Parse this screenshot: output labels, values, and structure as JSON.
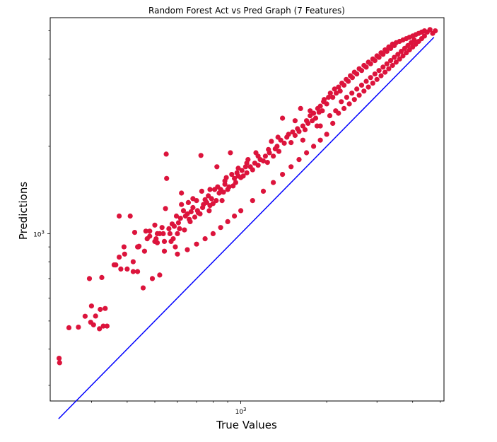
{
  "chart_data": {
    "type": "scatter",
    "title": "Random Forest Act vs Pred Graph (7 Features)",
    "xlabel": "True Values",
    "ylabel": "Predictions",
    "xscale": "log",
    "yscale": "log",
    "xlim": [
      215,
      5150
    ],
    "ylim": [
      265,
      5550
    ],
    "x_tick_labels": [
      {
        "value": 1000,
        "base": "10",
        "exp": "3"
      }
    ],
    "y_tick_labels": [
      {
        "value": 1000,
        "base": "10",
        "exp": "3"
      }
    ],
    "grid": false,
    "legend": "none",
    "point_color": "#dc143c",
    "line_color": "#0000ff",
    "identity_line": {
      "x": [
        230,
        4750
      ],
      "y": [
        230,
        4750
      ]
    },
    "points": [
      [
        231,
        372
      ],
      [
        232,
        359
      ],
      [
        250,
        474
      ],
      [
        270,
        476
      ],
      [
        285,
        519
      ],
      [
        295,
        700
      ],
      [
        298,
        495
      ],
      [
        300,
        563
      ],
      [
        305,
        485
      ],
      [
        310,
        520
      ],
      [
        320,
        470
      ],
      [
        322,
        548
      ],
      [
        326,
        706
      ],
      [
        330,
        480
      ],
      [
        335,
        552
      ],
      [
        340,
        480
      ],
      [
        360,
        780
      ],
      [
        365,
        780
      ],
      [
        375,
        830
      ],
      [
        375,
        1150
      ],
      [
        380,
        755
      ],
      [
        390,
        900
      ],
      [
        392,
        850
      ],
      [
        400,
        755
      ],
      [
        410,
        1150
      ],
      [
        420,
        740
      ],
      [
        420,
        800
      ],
      [
        425,
        1010
      ],
      [
        435,
        740
      ],
      [
        435,
        900
      ],
      [
        438,
        900
      ],
      [
        440,
        905
      ],
      [
        455,
        650
      ],
      [
        460,
        870
      ],
      [
        465,
        1020
      ],
      [
        470,
        960
      ],
      [
        480,
        1020
      ],
      [
        480,
        980
      ],
      [
        490,
        700
      ],
      [
        500,
        1070
      ],
      [
        500,
        940
      ],
      [
        505,
        960
      ],
      [
        510,
        1000
      ],
      [
        510,
        930
      ],
      [
        520,
        1000
      ],
      [
        520,
        720
      ],
      [
        530,
        1050
      ],
      [
        535,
        1000
      ],
      [
        540,
        940
      ],
      [
        540,
        870
      ],
      [
        545,
        1220
      ],
      [
        548,
        1880
      ],
      [
        550,
        1550
      ],
      [
        560,
        1040
      ],
      [
        565,
        1000
      ],
      [
        570,
        940
      ],
      [
        575,
        1080
      ],
      [
        580,
        960
      ],
      [
        585,
        1060
      ],
      [
        590,
        900
      ],
      [
        595,
        1150
      ],
      [
        600,
        1000
      ],
      [
        605,
        1090
      ],
      [
        610,
        1040
      ],
      [
        615,
        1130
      ],
      [
        620,
        1380
      ],
      [
        630,
        1200
      ],
      [
        635,
        1030
      ],
      [
        640,
        1150
      ],
      [
        650,
        1170
      ],
      [
        655,
        1280
      ],
      [
        660,
        1120
      ],
      [
        665,
        1100
      ],
      [
        670,
        1190
      ],
      [
        680,
        1230
      ],
      [
        690,
        1140
      ],
      [
        700,
        1300
      ],
      [
        705,
        1200
      ],
      [
        710,
        1180
      ],
      [
        720,
        1170
      ],
      [
        725,
        1860
      ],
      [
        730,
        1400
      ],
      [
        735,
        1230
      ],
      [
        740,
        1260
      ],
      [
        750,
        1310
      ],
      [
        760,
        1280
      ],
      [
        770,
        1350
      ],
      [
        775,
        1200
      ],
      [
        780,
        1250
      ],
      [
        790,
        1320
      ],
      [
        800,
        1270
      ],
      [
        810,
        1420
      ],
      [
        820,
        1300
      ],
      [
        825,
        1700
      ],
      [
        830,
        1450
      ],
      [
        840,
        1380
      ],
      [
        850,
        1420
      ],
      [
        860,
        1300
      ],
      [
        870,
        1390
      ],
      [
        880,
        1480
      ],
      [
        890,
        1560
      ],
      [
        900,
        1420
      ],
      [
        910,
        1450
      ],
      [
        920,
        1900
      ],
      [
        930,
        1600
      ],
      [
        940,
        1460
      ],
      [
        950,
        1550
      ],
      [
        960,
        1500
      ],
      [
        970,
        1620
      ],
      [
        980,
        1580
      ],
      [
        1000,
        1560
      ],
      [
        1010,
        1650
      ],
      [
        1020,
        1580
      ],
      [
        1040,
        1700
      ],
      [
        1050,
        1620
      ],
      [
        1060,
        1800
      ],
      [
        1080,
        1700
      ],
      [
        1100,
        1660
      ],
      [
        1120,
        1750
      ],
      [
        1130,
        1900
      ],
      [
        1150,
        1720
      ],
      [
        1170,
        1800
      ],
      [
        1200,
        1780
      ],
      [
        1220,
        1850
      ],
      [
        1240,
        1760
      ],
      [
        1260,
        1900
      ],
      [
        1280,
        2080
      ],
      [
        1300,
        1850
      ],
      [
        1320,
        1960
      ],
      [
        1340,
        2000
      ],
      [
        1360,
        1920
      ],
      [
        1380,
        2100
      ],
      [
        1400,
        2500
      ],
      [
        1420,
        2050
      ],
      [
        1450,
        2150
      ],
      [
        1470,
        2200
      ],
      [
        1500,
        2060
      ],
      [
        1520,
        2240
      ],
      [
        1550,
        2180
      ],
      [
        1580,
        2300
      ],
      [
        1600,
        2250
      ],
      [
        1620,
        2700
      ],
      [
        1650,
        2350
      ],
      [
        1680,
        2280
      ],
      [
        1700,
        2450
      ],
      [
        1720,
        2400
      ],
      [
        1750,
        2550
      ],
      [
        1780,
        2450
      ],
      [
        1800,
        2600
      ],
      [
        1830,
        2500
      ],
      [
        1860,
        2700
      ],
      [
        1880,
        2620
      ],
      [
        1900,
        2750
      ],
      [
        1930,
        2650
      ],
      [
        1960,
        2900
      ],
      [
        2000,
        2800
      ],
      [
        2030,
        2950
      ],
      [
        2060,
        3050
      ],
      [
        2100,
        2950
      ],
      [
        2130,
        3150
      ],
      [
        2160,
        3050
      ],
      [
        2200,
        3200
      ],
      [
        2230,
        3100
      ],
      [
        2260,
        3300
      ],
      [
        2300,
        3250
      ],
      [
        2340,
        3400
      ],
      [
        2380,
        3350
      ],
      [
        2420,
        3500
      ],
      [
        2460,
        3450
      ],
      [
        2500,
        3600
      ],
      [
        2550,
        3550
      ],
      [
        2600,
        3700
      ],
      [
        2650,
        3650
      ],
      [
        2700,
        3800
      ],
      [
        2750,
        3750
      ],
      [
        2800,
        3900
      ],
      [
        2850,
        3850
      ],
      [
        2900,
        4000
      ],
      [
        2950,
        3950
      ],
      [
        3000,
        4100
      ],
      [
        3050,
        4050
      ],
      [
        3100,
        4200
      ],
      [
        3150,
        4150
      ],
      [
        3200,
        4300
      ],
      [
        3250,
        4250
      ],
      [
        3300,
        4400
      ],
      [
        3350,
        4350
      ],
      [
        3400,
        4500
      ],
      [
        3450,
        4450
      ],
      [
        3500,
        4550
      ],
      [
        3600,
        4600
      ],
      [
        3700,
        4650
      ],
      [
        3800,
        4700
      ],
      [
        3900,
        4750
      ],
      [
        4000,
        4800
      ],
      [
        4100,
        4850
      ],
      [
        4200,
        4900
      ],
      [
        4300,
        4950
      ],
      [
        4400,
        5000
      ],
      [
        4500,
        4950
      ],
      [
        4600,
        5050
      ],
      [
        4700,
        4900
      ],
      [
        4800,
        5000
      ],
      [
        2100,
        2400
      ],
      [
        2200,
        2600
      ],
      [
        2300,
        2700
      ],
      [
        2400,
        2800
      ],
      [
        2500,
        2900
      ],
      [
        2600,
        3000
      ],
      [
        2700,
        3100
      ],
      [
        2800,
        3200
      ],
      [
        2900,
        3300
      ],
      [
        3000,
        3400
      ],
      [
        3100,
        3500
      ],
      [
        3200,
        3600
      ],
      [
        3300,
        3700
      ],
      [
        3400,
        3800
      ],
      [
        3500,
        3900
      ],
      [
        3600,
        4000
      ],
      [
        3700,
        4100
      ],
      [
        3800,
        4200
      ],
      [
        3900,
        4300
      ],
      [
        4000,
        4400
      ],
      [
        4100,
        4500
      ],
      [
        4200,
        4600
      ],
      [
        4300,
        4700
      ],
      [
        4400,
        4800
      ],
      [
        2000,
        2200
      ],
      [
        1900,
        2100
      ],
      [
        1800,
        2000
      ],
      [
        1700,
        1900
      ],
      [
        1600,
        1800
      ],
      [
        1500,
        1700
      ],
      [
        1400,
        1600
      ],
      [
        1300,
        1500
      ],
      [
        1200,
        1400
      ],
      [
        1100,
        1300
      ],
      [
        1000,
        1200
      ],
      [
        950,
        1150
      ],
      [
        900,
        1100
      ],
      [
        850,
        1050
      ],
      [
        800,
        1000
      ],
      [
        750,
        960
      ],
      [
        700,
        920
      ],
      [
        650,
        880
      ],
      [
        600,
        850
      ],
      [
        1900,
        2350
      ],
      [
        2050,
        2550
      ],
      [
        2250,
        2850
      ],
      [
        2450,
        3050
      ],
      [
        2650,
        3250
      ],
      [
        2850,
        3450
      ],
      [
        3050,
        3650
      ],
      [
        3250,
        3850
      ],
      [
        3450,
        4050
      ],
      [
        3650,
        4250
      ],
      [
        3850,
        4450
      ],
      [
        4050,
        4650
      ],
      [
        1250,
        1950
      ],
      [
        1350,
        2150
      ],
      [
        1550,
        2450
      ],
      [
        1750,
        2650
      ],
      [
        1950,
        2850
      ],
      [
        1150,
        1850
      ],
      [
        1050,
        1750
      ],
      [
        980,
        1680
      ],
      [
        880,
        1520
      ],
      [
        780,
        1420
      ],
      [
        680,
        1320
      ],
      [
        620,
        1260
      ],
      [
        1650,
        2100
      ],
      [
        1850,
        2350
      ],
      [
        2150,
        2650
      ],
      [
        2350,
        2950
      ],
      [
        2550,
        3150
      ],
      [
        2750,
        3350
      ],
      [
        2950,
        3550
      ],
      [
        3150,
        3750
      ],
      [
        3350,
        3950
      ],
      [
        3550,
        4150
      ],
      [
        3750,
        4350
      ],
      [
        3950,
        4550
      ]
    ]
  }
}
